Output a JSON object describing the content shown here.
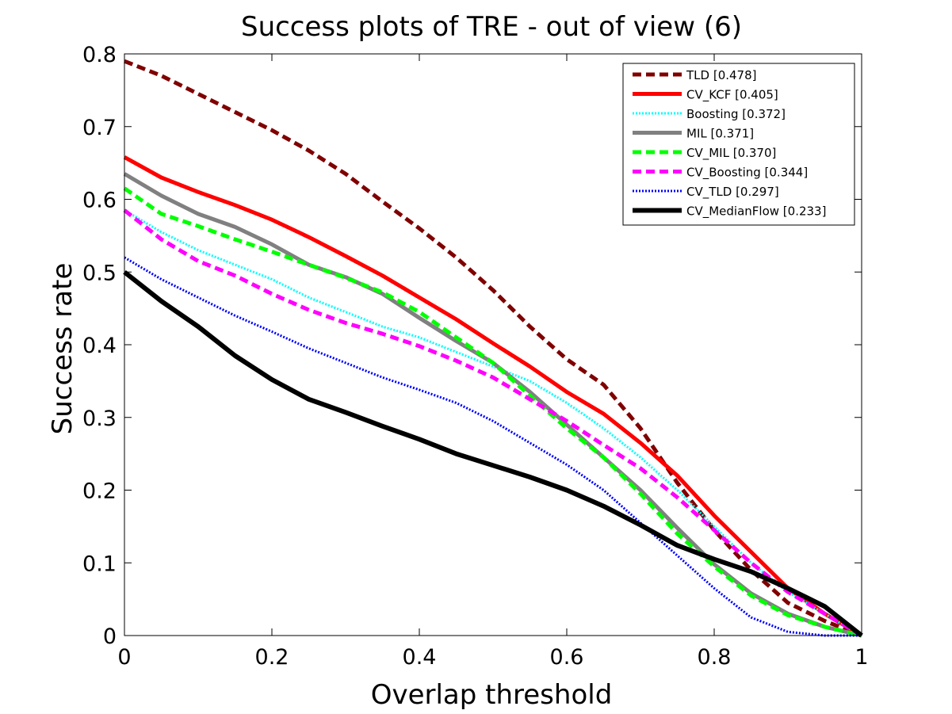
{
  "chart_data": {
    "type": "line",
    "title": "Success plots of TRE - out of view (6)",
    "xlabel": "Overlap threshold",
    "ylabel": "Success rate",
    "xlim": [
      0,
      1
    ],
    "ylim": [
      0,
      0.8
    ],
    "xticks": [
      "0",
      "0.2",
      "0.4",
      "0.6",
      "0.8",
      "1"
    ],
    "yticks": [
      "0",
      "0.1",
      "0.2",
      "0.3",
      "0.4",
      "0.5",
      "0.6",
      "0.7",
      "0.8"
    ],
    "grid": false,
    "legend_position": "top-right",
    "x": [
      0,
      0.05,
      0.1,
      0.15,
      0.2,
      0.25,
      0.3,
      0.35,
      0.4,
      0.45,
      0.5,
      0.55,
      0.6,
      0.65,
      0.7,
      0.75,
      0.8,
      0.85,
      0.9,
      0.95,
      1.0
    ],
    "series": [
      {
        "name": "TLD [0.478]",
        "color": "#800000",
        "style": "dashed",
        "width": 5,
        "values": [
          0.79,
          0.77,
          0.745,
          0.72,
          0.695,
          0.667,
          0.635,
          0.597,
          0.56,
          0.52,
          0.475,
          0.425,
          0.38,
          0.345,
          0.285,
          0.21,
          0.145,
          0.09,
          0.045,
          0.02,
          0.0
        ]
      },
      {
        "name": "CV_KCF [0.405]",
        "color": "#ff0000",
        "style": "solid",
        "width": 5,
        "values": [
          0.658,
          0.63,
          0.61,
          0.592,
          0.572,
          0.548,
          0.522,
          0.495,
          0.465,
          0.435,
          0.402,
          0.37,
          0.335,
          0.305,
          0.265,
          0.22,
          0.165,
          0.115,
          0.065,
          0.03,
          0.0
        ]
      },
      {
        "name": "Boosting [0.372]",
        "color": "#00ffff",
        "style": "dotted",
        "width": 3,
        "values": [
          0.585,
          0.555,
          0.53,
          0.51,
          0.49,
          0.465,
          0.445,
          0.425,
          0.41,
          0.39,
          0.37,
          0.35,
          0.32,
          0.285,
          0.245,
          0.2,
          0.15,
          0.1,
          0.06,
          0.03,
          0.0
        ]
      },
      {
        "name": "MIL [0.371]",
        "color": "#808080",
        "style": "solid",
        "width": 5,
        "values": [
          0.635,
          0.605,
          0.58,
          0.562,
          0.538,
          0.51,
          0.493,
          0.47,
          0.437,
          0.405,
          0.375,
          0.335,
          0.29,
          0.245,
          0.2,
          0.148,
          0.098,
          0.058,
          0.03,
          0.012,
          0.0
        ]
      },
      {
        "name": "CV_MIL [0.370]",
        "color": "#00ff00",
        "style": "dashed",
        "width": 5,
        "values": [
          0.615,
          0.58,
          0.563,
          0.545,
          0.528,
          0.51,
          0.492,
          0.472,
          0.445,
          0.41,
          0.375,
          0.33,
          0.285,
          0.245,
          0.195,
          0.14,
          0.095,
          0.055,
          0.028,
          0.012,
          0.0
        ]
      },
      {
        "name": "CV_Boosting [0.344]",
        "color": "#ff00ff",
        "style": "dashed",
        "width": 5,
        "values": [
          0.585,
          0.545,
          0.515,
          0.495,
          0.47,
          0.448,
          0.43,
          0.415,
          0.398,
          0.378,
          0.355,
          0.325,
          0.295,
          0.262,
          0.23,
          0.19,
          0.145,
          0.1,
          0.06,
          0.03,
          0.0
        ]
      },
      {
        "name": "CV_TLD [0.297]",
        "color": "#0000ff",
        "style": "dotted",
        "width": 3,
        "values": [
          0.52,
          0.49,
          0.465,
          0.44,
          0.418,
          0.395,
          0.375,
          0.355,
          0.338,
          0.32,
          0.295,
          0.265,
          0.235,
          0.2,
          0.155,
          0.11,
          0.065,
          0.025,
          0.005,
          0.0,
          0.0
        ]
      },
      {
        "name": "CV_MedianFlow [0.233]",
        "color": "#000000",
        "style": "solid",
        "width": 6,
        "values": [
          0.5,
          0.46,
          0.425,
          0.385,
          0.352,
          0.325,
          0.307,
          0.288,
          0.27,
          0.25,
          0.234,
          0.218,
          0.2,
          0.178,
          0.152,
          0.124,
          0.105,
          0.088,
          0.065,
          0.04,
          0.0
        ]
      }
    ]
  }
}
